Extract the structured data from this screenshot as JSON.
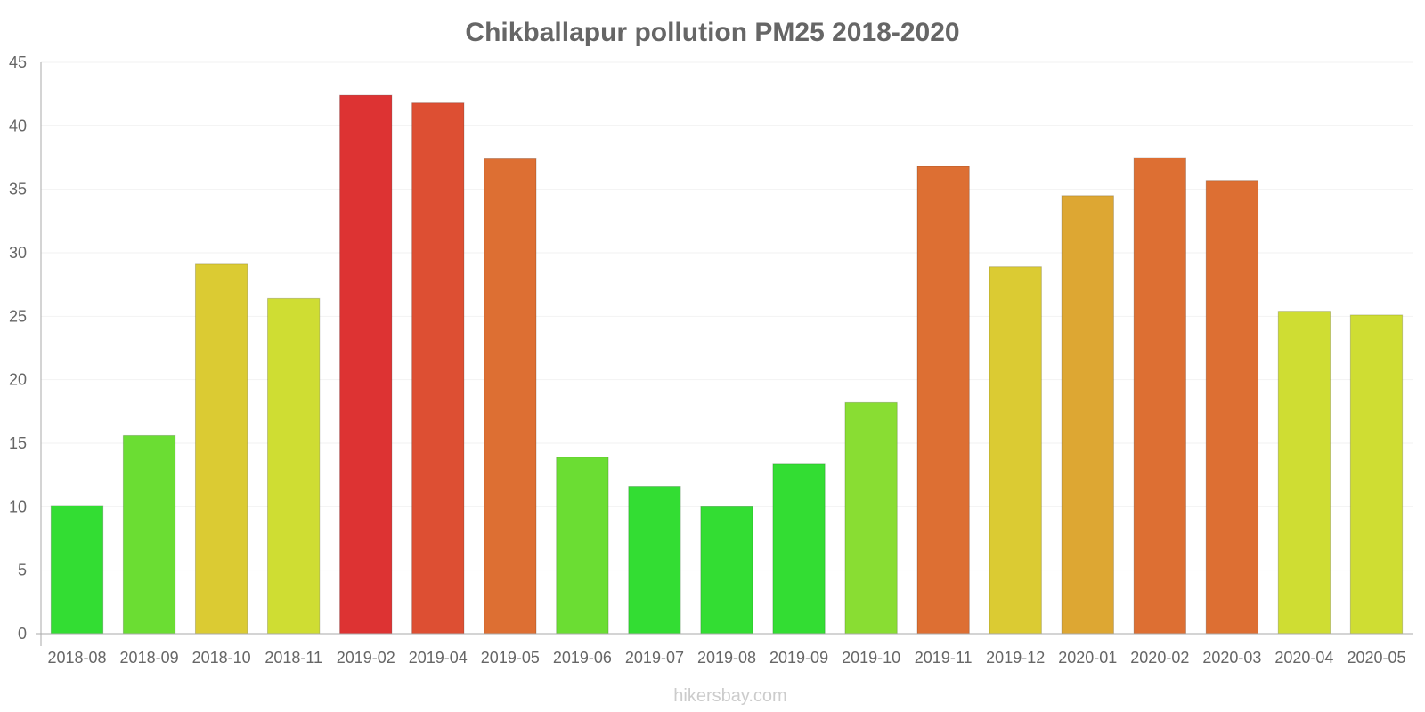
{
  "chart_data": {
    "type": "bar",
    "title": "Chikballapur pollution PM25 2018-2020",
    "xlabel": "",
    "ylabel": "",
    "ylim": [
      0,
      45
    ],
    "yticks": [
      "0",
      "5",
      "10",
      "15",
      "20",
      "25",
      "30",
      "35",
      "40",
      "45"
    ],
    "grid": true,
    "categories": [
      "2018-08",
      "2018-09",
      "2018-10",
      "2018-11",
      "2019-02",
      "2019-04",
      "2019-05",
      "2019-06",
      "2019-07",
      "2019-08",
      "2019-09",
      "2019-10",
      "2019-11",
      "2019-12",
      "2020-01",
      "2020-02",
      "2020-03",
      "2020-04",
      "2020-05"
    ],
    "values": [
      10.1,
      15.6,
      29.1,
      26.4,
      42.4,
      41.8,
      37.4,
      13.9,
      11.6,
      10.0,
      13.4,
      18.2,
      36.8,
      28.9,
      34.5,
      37.5,
      35.7,
      25.4,
      25.1
    ],
    "colors": [
      "#33dd33",
      "#6bdd33",
      "#dbcb33",
      "#cfdd33",
      "#dd3333",
      "#dd4f33",
      "#dd6f33",
      "#6bdd33",
      "#33dd33",
      "#33dd33",
      "#33dd33",
      "#89dd33",
      "#dd6f33",
      "#dbcb33",
      "#dda733",
      "#dd6f33",
      "#dd6f33",
      "#cfdd33",
      "#cfdd33"
    ]
  },
  "watermark": "hikersbay.com"
}
